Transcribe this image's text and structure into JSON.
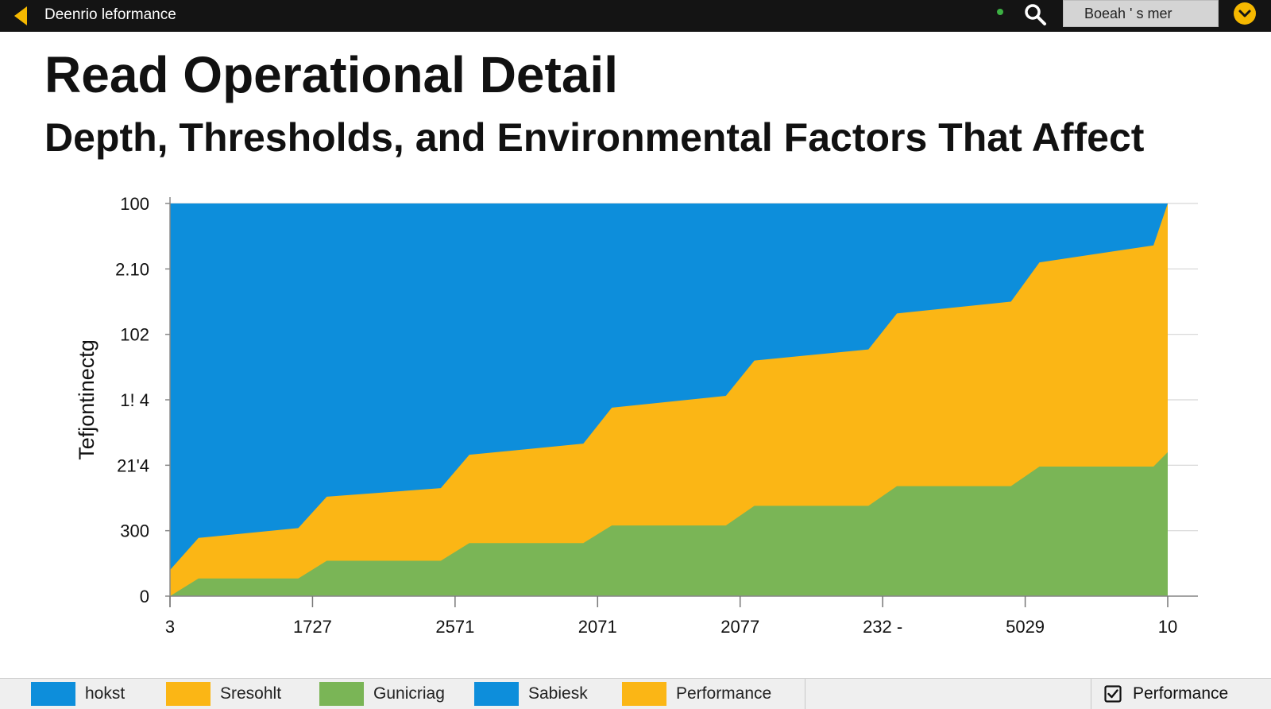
{
  "header": {
    "app_title": "Deenrio leformance",
    "search_text": "Boeah ' s mer",
    "icons": {
      "back": "chevron-left-icon",
      "search": "search-icon",
      "menu": "chevron-down-circle-icon",
      "status": "status-dot"
    },
    "accent_color": "#f5b800",
    "status_color": "#3cb043"
  },
  "page": {
    "title": "Read Operational Detail",
    "subtitle": "Depth, Thresholds, and Environmental Factors That Affect"
  },
  "chart_data": {
    "type": "area",
    "stacked": true,
    "normalized": true,
    "ylabel": "Tefjontinectg",
    "y_tick_labels": [
      "0",
      "300",
      "21'4",
      "1! 4",
      "102",
      "2.10",
      "100"
    ],
    "ylim": [
      0,
      6
    ],
    "x_tick_labels": [
      "3",
      "1727",
      "2571",
      "2071",
      "2077",
      "232 -",
      "5029",
      "10"
    ],
    "xlim": [
      0,
      7
    ],
    "grid": true,
    "series": [
      {
        "color": "#7ab556",
        "points": [
          [
            0,
            0
          ],
          [
            0.2,
            0.27
          ],
          [
            0.9,
            0.27
          ],
          [
            1.1,
            0.54
          ],
          [
            1.9,
            0.54
          ],
          [
            2.1,
            0.81
          ],
          [
            2.9,
            0.81
          ],
          [
            3.1,
            1.08
          ],
          [
            3.9,
            1.08
          ],
          [
            4.1,
            1.38
          ],
          [
            4.9,
            1.38
          ],
          [
            5.1,
            1.68
          ],
          [
            5.9,
            1.68
          ],
          [
            6.1,
            1.98
          ],
          [
            6.9,
            1.98
          ],
          [
            7,
            2.2
          ]
        ]
      },
      {
        "color": "#fbb615",
        "points": [
          [
            0,
            0.4
          ],
          [
            0.2,
            0.89
          ],
          [
            0.9,
            1.04
          ],
          [
            1.1,
            1.52
          ],
          [
            1.9,
            1.65
          ],
          [
            2.1,
            2.16
          ],
          [
            2.9,
            2.33
          ],
          [
            3.1,
            2.88
          ],
          [
            3.9,
            3.06
          ],
          [
            4.1,
            3.6
          ],
          [
            4.9,
            3.77
          ],
          [
            5.1,
            4.32
          ],
          [
            5.9,
            4.5
          ],
          [
            6.1,
            5.1
          ],
          [
            6.9,
            5.36
          ],
          [
            7,
            6
          ]
        ]
      },
      {
        "color": "#0d8edb",
        "points": "fills to top (100%)"
      }
    ],
    "legend_position": "bottom",
    "legend": [
      {
        "label": "hokst",
        "color": "#0d8edb"
      },
      {
        "label": "Sresohlt",
        "color": "#fbb615"
      },
      {
        "label": "Gunicriag",
        "color": "#7ab556"
      },
      {
        "label": "Sabiesk",
        "color": "#0d8edb"
      },
      {
        "label": "Performance",
        "color": "#fbb615"
      }
    ],
    "toggle_label": "Performance",
    "toggle_checked": true
  }
}
